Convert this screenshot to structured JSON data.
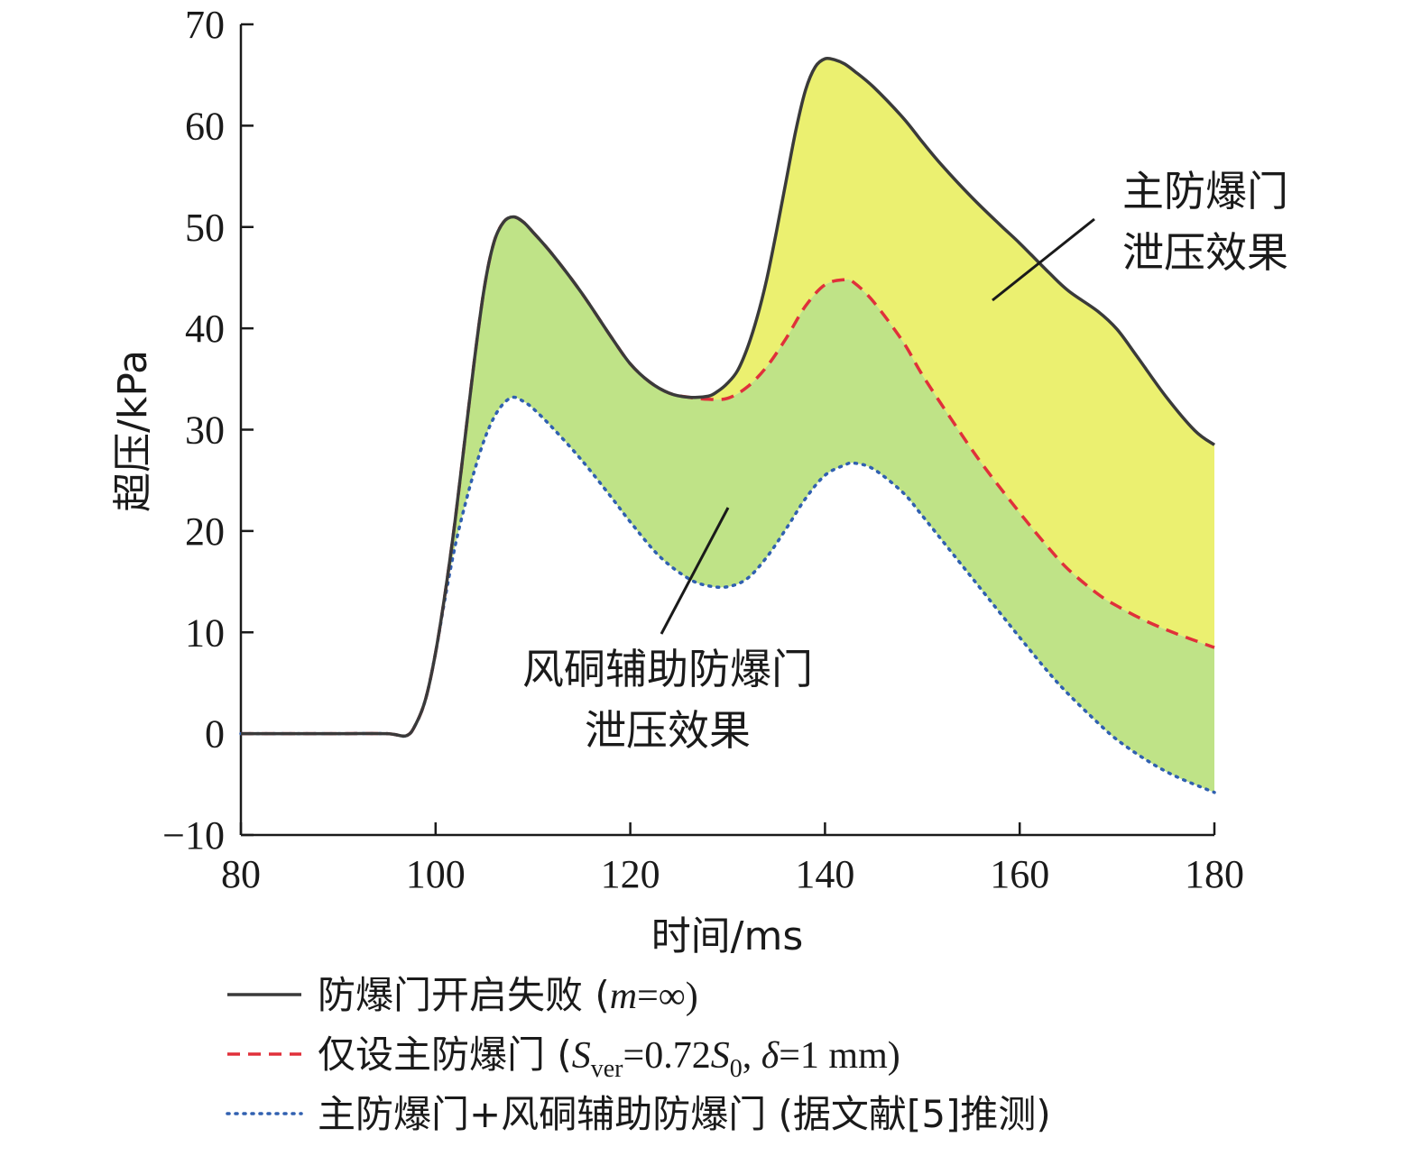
{
  "chart_data": {
    "type": "line",
    "xlabel": "时间/ms",
    "ylabel": "超压/kPa",
    "xlim": [
      80,
      180
    ],
    "ylim": [
      -10,
      70
    ],
    "xticks": [
      80,
      100,
      120,
      140,
      160,
      180
    ],
    "yticks": [
      -10,
      0,
      10,
      20,
      30,
      40,
      50,
      60,
      70
    ],
    "ytick_labels": [
      "−10",
      "0",
      "10",
      "20",
      "30",
      "40",
      "50",
      "60",
      "70"
    ],
    "colors": {
      "series_fail": "#3a3a3a",
      "series_main": "#e0303a",
      "series_combined": "#3060b0",
      "fill_main": "#ebf070",
      "fill_aux": "#bfe387"
    },
    "series": [
      {
        "name": "防爆门开启失败 (m=∞)",
        "legend_parts": [
          "防爆门开启失败 (",
          "m",
          "=∞)"
        ],
        "style": "solid",
        "x": [
          80,
          90,
          95,
          97,
          98,
          99,
          100,
          101,
          102,
          103,
          104,
          105,
          106,
          107,
          108,
          109,
          110,
          112,
          115,
          118,
          120,
          122,
          124,
          126,
          128,
          129,
          130,
          131,
          132,
          133,
          134,
          135,
          136,
          137,
          138,
          139,
          140,
          141,
          142,
          143,
          145,
          148,
          150,
          152,
          155,
          158,
          160,
          163,
          165,
          168,
          170,
          172,
          175,
          178,
          180
        ],
        "y": [
          0,
          0,
          0,
          -0.2,
          1,
          3.5,
          8,
          14,
          21,
          29,
          37,
          44,
          48.5,
          50.5,
          51,
          50.5,
          49.5,
          47.3,
          43.5,
          39.2,
          36.5,
          34.7,
          33.6,
          33.2,
          33.3,
          33.8,
          34.6,
          35.8,
          38,
          41,
          44.8,
          49.5,
          54.5,
          59.5,
          63.5,
          65.8,
          66.6,
          66.5,
          66.1,
          65.4,
          63.8,
          60.8,
          58.4,
          56.1,
          53,
          50.2,
          48.4,
          45.5,
          43.7,
          41.7,
          39.9,
          37.3,
          33.3,
          29.9,
          28.5
        ]
      },
      {
        "name": "仅设主防爆门 (Sver=0.72S0, δ=1 mm)",
        "legend_parts": [
          "仅设主防爆门 (",
          "S",
          "ver",
          "=0.72",
          "S",
          "0",
          ", ",
          "δ",
          "=1 mm)"
        ],
        "style": "dashed",
        "x": [
          80,
          90,
          95,
          97,
          98,
          99,
          100,
          101,
          102,
          103,
          104,
          105,
          106,
          107,
          108,
          109,
          110,
          112,
          115,
          118,
          120,
          122,
          124,
          126,
          128,
          130,
          132,
          134,
          136,
          138,
          140,
          142,
          143,
          145,
          148,
          150,
          153,
          156,
          160,
          163,
          165,
          168,
          170,
          173,
          176,
          180
        ],
        "y": [
          0,
          0,
          0,
          -0.2,
          1,
          3.5,
          8,
          14,
          21,
          29,
          37,
          44,
          48.5,
          50.5,
          51,
          50.5,
          49.5,
          47.3,
          43.5,
          39.2,
          36.5,
          34.7,
          33.6,
          33.2,
          33,
          33.1,
          34.2,
          36.2,
          39,
          42.2,
          44.3,
          44.8,
          44.5,
          42.6,
          38.7,
          35.4,
          31,
          26.8,
          21.8,
          18.3,
          16.2,
          13.8,
          12.6,
          11.1,
          9.9,
          8.5
        ]
      },
      {
        "name": "主防爆门+风硐辅助防爆门 (据文献[5]推测)",
        "legend_parts": [
          "主防爆门+风硐辅助防爆门 (据文献[5]推测)"
        ],
        "style": "dotted",
        "x": [
          80,
          90,
          95,
          97,
          98,
          99,
          100,
          101,
          102,
          103,
          104,
          105,
          106,
          107,
          108,
          109,
          110,
          112,
          115,
          118,
          120,
          123,
          126,
          128,
          130,
          132,
          134,
          136,
          138,
          140,
          142,
          143,
          145,
          148,
          150,
          153,
          156,
          160,
          163,
          165,
          168,
          170,
          173,
          176,
          180
        ],
        "y": [
          0,
          0,
          0,
          -0.2,
          1,
          3.5,
          8,
          13.5,
          18.5,
          22.5,
          26,
          29,
          31.2,
          32.6,
          33.2,
          32.8,
          32.1,
          30.2,
          27,
          23.4,
          20.9,
          17.5,
          15.3,
          14.6,
          14.5,
          15.3,
          17.4,
          20.2,
          23.2,
          25.5,
          26.5,
          26.7,
          26.1,
          23.8,
          21.5,
          17.9,
          14.3,
          9.5,
          6,
          3.9,
          1.1,
          -0.6,
          -2.6,
          -4.2,
          -5.8
        ]
      }
    ],
    "annotations": [
      {
        "lines": [
          "主防爆门",
          "泄压效果"
        ],
        "points_to": "area between 防爆门开启失败 and 仅设主防爆门 curves"
      },
      {
        "lines": [
          "风硐辅助防爆门",
          "泄压效果"
        ],
        "points_to": "area between 仅设主防爆门 and 主防爆门+风硐辅助防爆门 curves"
      }
    ],
    "legend_position": "bottom-center",
    "grid": false
  }
}
